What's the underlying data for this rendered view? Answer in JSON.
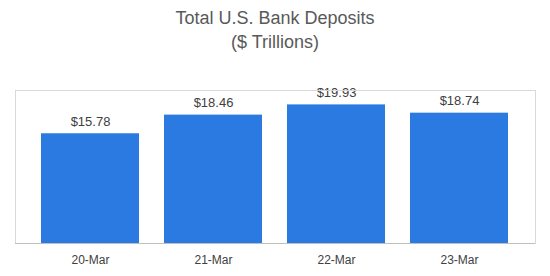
{
  "chart_data": {
    "type": "bar",
    "title": "Total U.S. Bank Deposits",
    "subtitle": "($ Trillions)",
    "categories": [
      "20-Mar",
      "21-Mar",
      "22-Mar",
      "23-Mar"
    ],
    "values": [
      15.78,
      18.46,
      19.93,
      18.74
    ],
    "value_labels": [
      "$15.78",
      "$18.46",
      "$19.93",
      "$18.74"
    ],
    "data_labels": true,
    "color": "#2a7ae2",
    "ylim": [
      0,
      22
    ],
    "yticks": [],
    "grid": false,
    "tick_labels": "x"
  }
}
